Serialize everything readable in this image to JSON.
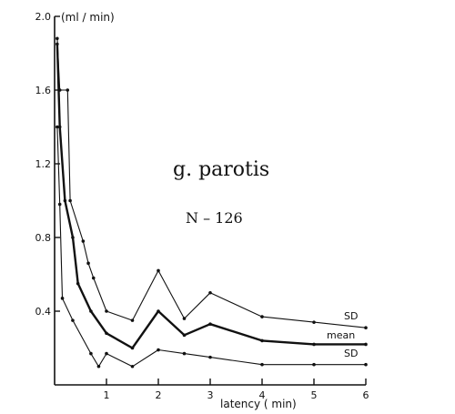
{
  "chart_data": {
    "type": "line",
    "title": "g. parotis",
    "subtitle": "N – 126",
    "xlabel": "latency ( min)",
    "ylabel": "(ml / min)",
    "xlim": [
      0,
      6
    ],
    "ylim": [
      0,
      2.0
    ],
    "x_ticks": [
      1,
      2,
      3,
      4,
      5,
      6
    ],
    "y_ticks": [
      0.4,
      0.8,
      1.2,
      1.6,
      2.0
    ],
    "y_tick_labels": [
      "0.4",
      "0.8",
      "1.2",
      "1.6",
      "2.0"
    ],
    "grid": false,
    "series": [
      {
        "name": "SD",
        "points": [
          [
            0.05,
            1.88
          ],
          [
            0.1,
            1.6
          ],
          [
            0.25,
            1.6
          ],
          [
            0.3,
            1.0
          ],
          [
            0.55,
            0.78
          ],
          [
            0.65,
            0.66
          ],
          [
            0.75,
            0.58
          ],
          [
            1.0,
            0.4
          ],
          [
            1.5,
            0.35
          ],
          [
            2.0,
            0.62
          ],
          [
            2.5,
            0.36
          ],
          [
            3.0,
            0.5
          ],
          [
            4.0,
            0.37
          ],
          [
            5.0,
            0.34
          ],
          [
            6.0,
            0.31
          ]
        ]
      },
      {
        "name": "mean",
        "points": [
          [
            0.05,
            1.85
          ],
          [
            0.1,
            1.4
          ],
          [
            0.2,
            1.0
          ],
          [
            0.35,
            0.8
          ],
          [
            0.45,
            0.55
          ],
          [
            0.7,
            0.4
          ],
          [
            1.0,
            0.28
          ],
          [
            1.5,
            0.2
          ],
          [
            2.0,
            0.4
          ],
          [
            2.5,
            0.27
          ],
          [
            3.0,
            0.33
          ],
          [
            4.0,
            0.24
          ],
          [
            5.0,
            0.22
          ],
          [
            6.0,
            0.22
          ]
        ]
      },
      {
        "name": "SD",
        "points": [
          [
            0.05,
            1.4
          ],
          [
            0.1,
            0.98
          ],
          [
            0.15,
            0.47
          ],
          [
            0.35,
            0.35
          ],
          [
            0.7,
            0.17
          ],
          [
            0.85,
            0.1
          ],
          [
            1.0,
            0.17
          ],
          [
            1.5,
            0.1
          ],
          [
            2.0,
            0.19
          ],
          [
            2.5,
            0.17
          ],
          [
            3.0,
            0.15
          ],
          [
            4.0,
            0.11
          ],
          [
            5.0,
            0.11
          ],
          [
            6.0,
            0.11
          ]
        ]
      }
    ]
  }
}
